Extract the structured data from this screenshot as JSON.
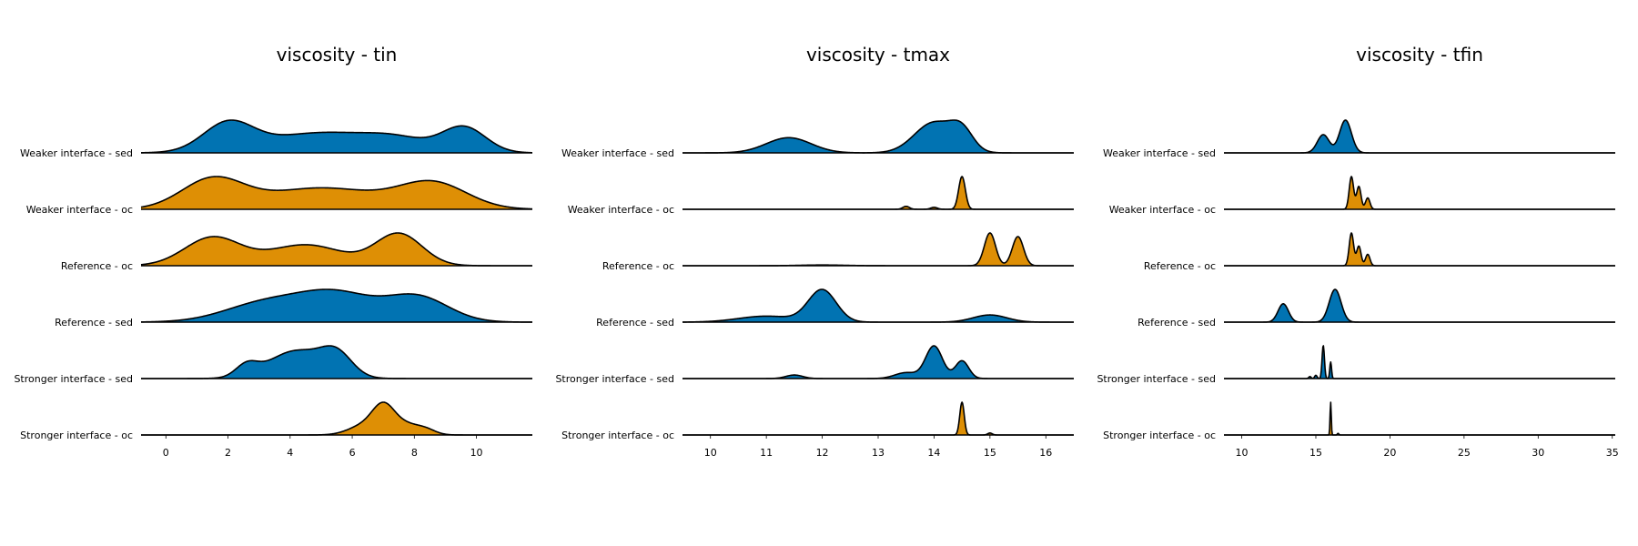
{
  "figure": {
    "colors": {
      "sed": "#0173b2",
      "oc": "#de8f05",
      "outline": "#000000"
    }
  },
  "chart_data": [
    {
      "type": "area",
      "title": "viscosity - tin",
      "xlim": [
        -0.8,
        11.8
      ],
      "xticks": [
        0,
        2,
        4,
        6,
        8,
        10
      ],
      "rows": [
        {
          "label": "Weaker interface - sed",
          "group": "sed",
          "components": [
            [
              2,
              0.8,
              0.55
            ],
            [
              5,
              1.8,
              0.4
            ],
            [
              9.6,
              0.7,
              0.5
            ],
            [
              7.5,
              1.0,
              0.2
            ]
          ]
        },
        {
          "label": "Weaker interface - oc",
          "group": "oc",
          "components": [
            [
              1.5,
              1.0,
              0.55
            ],
            [
              5,
              1.8,
              0.4
            ],
            [
              8.6,
              1.1,
              0.48
            ]
          ]
        },
        {
          "label": "Reference - oc",
          "group": "oc",
          "components": [
            [
              1.5,
              0.9,
              0.62
            ],
            [
              4.5,
              1.2,
              0.46
            ],
            [
              7.5,
              0.75,
              0.7
            ]
          ]
        },
        {
          "label": "Reference - sed",
          "group": "sed",
          "components": [
            [
              3.2,
              1.3,
              0.38
            ],
            [
              5.5,
              1.2,
              0.55
            ],
            [
              8.1,
              1.0,
              0.5
            ]
          ]
        },
        {
          "label": "Stronger interface - sed",
          "group": "sed",
          "components": [
            [
              2.6,
              0.35,
              0.32
            ],
            [
              4.2,
              0.9,
              0.78
            ],
            [
              5.5,
              0.5,
              0.6
            ]
          ]
        },
        {
          "label": "Stronger interface - oc",
          "group": "oc",
          "components": [
            [
              7.0,
              0.35,
              2.0
            ],
            [
              6.4,
              0.5,
              0.8
            ],
            [
              7.7,
              0.5,
              0.9
            ],
            [
              8.4,
              0.3,
              0.28
            ]
          ]
        }
      ]
    },
    {
      "type": "area",
      "title": "viscosity - tmax",
      "xlim": [
        9.5,
        16.5
      ],
      "xticks": [
        10,
        11,
        12,
        13,
        14,
        15,
        16
      ],
      "rows": [
        {
          "label": "Weaker interface - sed",
          "group": "sed",
          "components": [
            [
              11.4,
              0.4,
              0.2
            ],
            [
              14.0,
              0.35,
              0.4
            ],
            [
              14.5,
              0.2,
              0.25
            ]
          ]
        },
        {
          "label": "Weaker interface - oc",
          "group": "oc",
          "components": [
            [
              14.5,
              0.06,
              5.0
            ],
            [
              13.5,
              0.06,
              0.45
            ],
            [
              14.0,
              0.06,
              0.3
            ]
          ]
        },
        {
          "label": "Reference - oc",
          "group": "oc",
          "components": [
            [
              15.0,
              0.1,
              1.8
            ],
            [
              15.5,
              0.1,
              1.6
            ],
            [
              12.0,
              0.4,
              0.04
            ]
          ]
        },
        {
          "label": "Reference - sed",
          "group": "sed",
          "components": [
            [
              12.0,
              0.25,
              0.8
            ],
            [
              11.0,
              0.5,
              0.15
            ],
            [
              15.0,
              0.3,
              0.18
            ]
          ]
        },
        {
          "label": "Stronger interface - sed",
          "group": "sed",
          "components": [
            [
              14.0,
              0.15,
              1.1
            ],
            [
              14.5,
              0.12,
              0.6
            ],
            [
              11.5,
              0.15,
              0.12
            ],
            [
              13.5,
              0.2,
              0.2
            ]
          ]
        },
        {
          "label": "Stronger interface - oc",
          "group": "oc",
          "components": [
            [
              14.5,
              0.04,
              10.0
            ],
            [
              15.0,
              0.04,
              0.6
            ]
          ]
        }
      ]
    },
    {
      "type": "area",
      "title": "viscosity - tfin",
      "xlim": [
        8.8,
        35.2
      ],
      "xticks": [
        10,
        15,
        20,
        25,
        30,
        35
      ],
      "rows": [
        {
          "label": "Weaker interface - sed",
          "group": "sed",
          "components": [
            [
              15.5,
              0.4,
              0.25
            ],
            [
              17.0,
              0.4,
              0.45
            ]
          ]
        },
        {
          "label": "Weaker interface - oc",
          "group": "oc",
          "components": [
            [
              17.4,
              0.15,
              1.0
            ],
            [
              17.9,
              0.15,
              0.7
            ],
            [
              18.5,
              0.15,
              0.35
            ]
          ]
        },
        {
          "label": "Reference - oc",
          "group": "oc",
          "components": [
            [
              17.4,
              0.15,
              1.0
            ],
            [
              17.9,
              0.15,
              0.6
            ],
            [
              18.5,
              0.15,
              0.35
            ]
          ]
        },
        {
          "label": "Reference - sed",
          "group": "sed",
          "components": [
            [
              12.8,
              0.35,
              0.28
            ],
            [
              16.3,
              0.4,
              0.5
            ]
          ]
        },
        {
          "label": "Stronger interface - sed",
          "group": "sed",
          "components": [
            [
              15.5,
              0.08,
              2.0
            ],
            [
              16.0,
              0.06,
              1.0
            ],
            [
              15.0,
              0.08,
              0.2
            ],
            [
              14.6,
              0.08,
              0.12
            ]
          ]
        },
        {
          "label": "Stronger interface - oc",
          "group": "oc",
          "components": [
            [
              16.0,
              0.04,
              10.0
            ],
            [
              16.5,
              0.05,
              0.5
            ]
          ]
        }
      ]
    }
  ]
}
